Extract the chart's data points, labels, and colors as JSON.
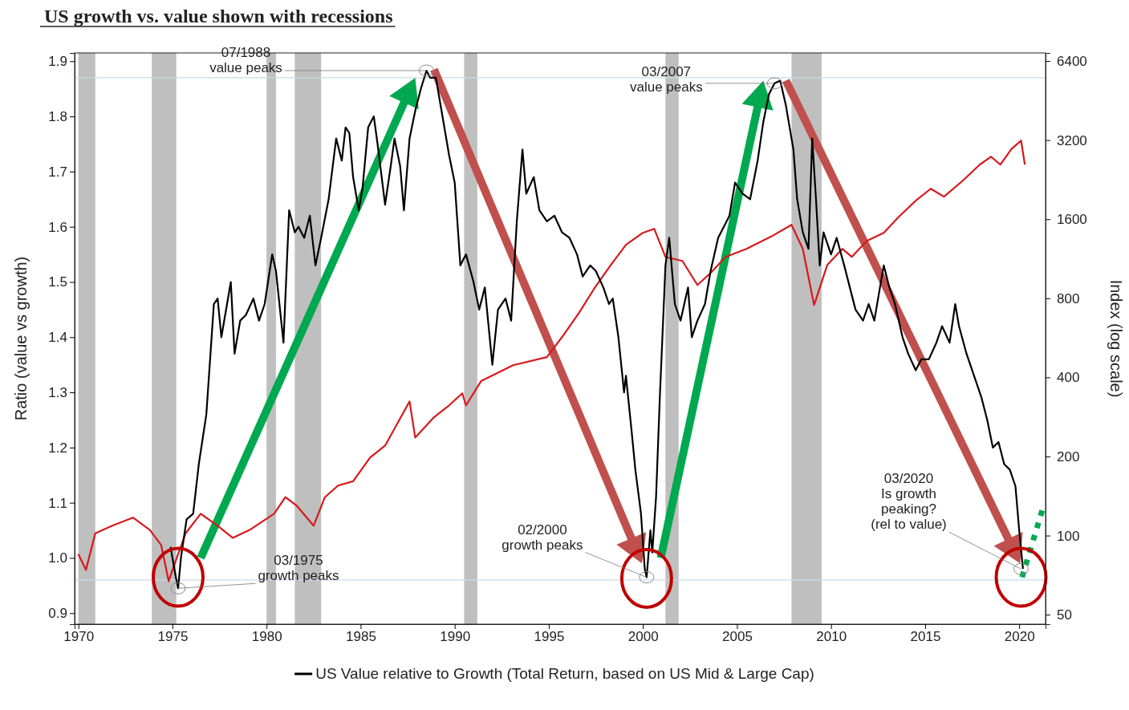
{
  "chart_data": {
    "type": "line",
    "title": "US growth vs. value shown with recessions",
    "ylabel": "Ratio (value vs growth)",
    "y2label": "Index (log scale)",
    "xlim": [
      1969.8,
      2021.4
    ],
    "xticks": [
      1970,
      1975,
      1980,
      1985,
      1990,
      1995,
      2000,
      2005,
      2010,
      2015,
      2020
    ],
    "ylim": [
      0.88,
      1.915
    ],
    "yticks": [
      0.9,
      {
        "value": 1,
        "label": "1.0"
      },
      1.1,
      1.2,
      1.3,
      1.4,
      1.5,
      1.6,
      1.7,
      1.8,
      1.9
    ],
    "y2lim": [
      46,
      6870
    ],
    "y2ticks": [
      50,
      100,
      200,
      400,
      800,
      1600,
      3200,
      6400
    ],
    "log": "y2",
    "grid": false,
    "legend": "bottom",
    "bands": [
      {
        "axis": "x",
        "from": 1970.0,
        "to": 1970.9,
        "color": "#bfbfbf"
      },
      {
        "axis": "x",
        "from": 1973.9,
        "to": 1975.2,
        "color": "#bfbfbf"
      },
      {
        "axis": "x",
        "from": 1980.0,
        "to": 1980.5,
        "color": "#bfbfbf"
      },
      {
        "axis": "x",
        "from": 1981.5,
        "to": 1982.9,
        "color": "#bfbfbf"
      },
      {
        "axis": "x",
        "from": 1990.5,
        "to": 1991.2,
        "color": "#bfbfbf"
      },
      {
        "axis": "x",
        "from": 2001.2,
        "to": 2001.9,
        "color": "#bfbfbf"
      },
      {
        "axis": "x",
        "from": 2007.9,
        "to": 2009.5,
        "color": "#bfbfbf"
      }
    ],
    "ref_lines": [
      {
        "axis": "y",
        "value": 1.87,
        "color": "#c8dde8"
      },
      {
        "axis": "y",
        "value": 0.96,
        "color": "#c8dde8"
      }
    ],
    "annotations": [
      {
        "text": "07/1988\nvalue peaks",
        "x": 1988.5,
        "y": 1.883
      },
      {
        "text": "03/2007\nvalue peaks",
        "x": 2007.0,
        "y": 1.86
      },
      {
        "text": "03/1975\ngrowth peaks",
        "x": 1975.3,
        "y": 0.945
      },
      {
        "text": "02/2000\ngrowth peaks",
        "x": 2000.2,
        "y": 0.965
      },
      {
        "text": "03/2020\nIs growth\npeaking?\n(rel to value)",
        "x": 2020.1,
        "y": 0.98
      }
    ],
    "series": [
      {
        "color": "#00a94f",
        "line_style": "dotted",
        "x": [
          2020.15,
          2021.3
        ],
        "values": [
          0.965,
          1.095
        ]
      },
      {
        "name": "US Value relative to Growth (Total Return, based on US Mid & Large Cap)",
        "color": "#000000",
        "x": [
          1974.9,
          1975.15,
          1975.3,
          1975.45,
          1975.75,
          1976.1,
          1976.4,
          1976.8,
          1977.0,
          1977.2,
          1977.4,
          1977.6,
          1977.9,
          1978.1,
          1978.3,
          1978.6,
          1978.9,
          1979.3,
          1979.6,
          1979.9,
          1980.3,
          1980.5,
          1980.9,
          1981.2,
          1981.5,
          1981.7,
          1982.0,
          1982.3,
          1982.6,
          1982.9,
          1983.3,
          1983.7,
          1984.0,
          1984.2,
          1984.4,
          1984.6,
          1984.9,
          1985.1,
          1985.4,
          1985.7,
          1985.9,
          1986.3,
          1986.6,
          1986.8,
          1987.1,
          1987.3,
          1987.6,
          1987.9,
          1988.2,
          1988.5,
          1988.7,
          1989.0,
          1989.4,
          1989.7,
          1990.0,
          1990.3,
          1990.6,
          1991.0,
          1991.3,
          1991.6,
          1992.0,
          1992.3,
          1992.7,
          1993.0,
          1993.3,
          1993.6,
          1993.8,
          1994.2,
          1994.5,
          1994.9,
          1995.3,
          1995.7,
          1996.1,
          1996.5,
          1996.8,
          1997.2,
          1997.5,
          1997.9,
          1998.2,
          1998.4,
          1998.7,
          1999.0,
          1999.1,
          1999.4,
          1999.6,
          1999.9,
          2000.1,
          2000.2,
          2000.4,
          2000.5,
          2000.7,
          2000.9,
          2001.2,
          2001.4,
          2001.7,
          2002.0,
          2002.4,
          2002.6,
          2002.9,
          2003.3,
          2003.6,
          2004.0,
          2004.6,
          2004.9,
          2005.3,
          2005.7,
          2006.1,
          2006.4,
          2006.7,
          2007.0,
          2007.3,
          2007.6,
          2008.0,
          2008.2,
          2008.5,
          2008.8,
          2009.0,
          2009.2,
          2009.4,
          2009.6,
          2010.0,
          2010.3,
          2010.7,
          2011.0,
          2011.3,
          2011.7,
          2012.0,
          2012.3,
          2012.8,
          2013.1,
          2013.4,
          2013.8,
          2014.1,
          2014.5,
          2014.8,
          2015.2,
          2015.6,
          2015.9,
          2016.3,
          2016.6,
          2016.8,
          2017.2,
          2017.6,
          2018.0,
          2018.3,
          2018.6,
          2018.9,
          2019.2,
          2019.5,
          2019.8,
          2020.0,
          2020.2
        ],
        "values": [
          1.02,
          0.97,
          0.945,
          1.0,
          1.07,
          1.08,
          1.17,
          1.26,
          1.36,
          1.46,
          1.47,
          1.4,
          1.46,
          1.5,
          1.37,
          1.43,
          1.44,
          1.47,
          1.43,
          1.46,
          1.55,
          1.52,
          1.39,
          1.63,
          1.59,
          1.6,
          1.58,
          1.62,
          1.53,
          1.58,
          1.65,
          1.76,
          1.72,
          1.78,
          1.77,
          1.69,
          1.63,
          1.67,
          1.78,
          1.8,
          1.75,
          1.64,
          1.71,
          1.76,
          1.71,
          1.63,
          1.76,
          1.81,
          1.85,
          1.883,
          1.87,
          1.87,
          1.79,
          1.73,
          1.68,
          1.53,
          1.55,
          1.5,
          1.45,
          1.49,
          1.35,
          1.45,
          1.47,
          1.43,
          1.61,
          1.74,
          1.66,
          1.69,
          1.63,
          1.61,
          1.62,
          1.59,
          1.58,
          1.55,
          1.51,
          1.53,
          1.52,
          1.49,
          1.46,
          1.47,
          1.4,
          1.3,
          1.33,
          1.23,
          1.16,
          1.08,
          0.98,
          0.965,
          1.05,
          1.01,
          1.11,
          1.29,
          1.53,
          1.58,
          1.46,
          1.43,
          1.49,
          1.4,
          1.43,
          1.46,
          1.52,
          1.58,
          1.62,
          1.68,
          1.66,
          1.65,
          1.72,
          1.79,
          1.84,
          1.86,
          1.865,
          1.82,
          1.74,
          1.65,
          1.59,
          1.56,
          1.76,
          1.65,
          1.53,
          1.59,
          1.55,
          1.58,
          1.53,
          1.49,
          1.45,
          1.43,
          1.46,
          1.43,
          1.53,
          1.49,
          1.46,
          1.4,
          1.37,
          1.34,
          1.36,
          1.36,
          1.39,
          1.42,
          1.39,
          1.46,
          1.42,
          1.37,
          1.33,
          1.29,
          1.25,
          1.2,
          1.21,
          1.17,
          1.16,
          1.13,
          1.05,
          0.98
        ]
      },
      {
        "color": "#d7191c",
        "axis": "y2",
        "x": [
          1970.0,
          1970.4,
          1970.9,
          1971.8,
          1972.9,
          1973.8,
          1974.4,
          1974.8,
          1975.0,
          1975.7,
          1976.5,
          1977.4,
          1978.2,
          1979.1,
          1980.4,
          1981.0,
          1981.6,
          1982.5,
          1983.1,
          1983.8,
          1984.6,
          1985.5,
          1986.3,
          1987.6,
          1987.9,
          1988.9,
          1989.7,
          1990.4,
          1990.6,
          1991.4,
          1993.1,
          1994.9,
          1995.7,
          1996.6,
          1997.4,
          1998.3,
          1999.1,
          2000.0,
          2000.6,
          2001.2,
          2002.1,
          2002.9,
          2003.6,
          2004.4,
          2005.5,
          2006.8,
          2007.9,
          2008.5,
          2009.1,
          2009.8,
          2010.6,
          2011.1,
          2011.9,
          2012.8,
          2013.6,
          2014.5,
          2015.3,
          2016.0,
          2017.0,
          2017.9,
          2018.5,
          2019.0,
          2019.6,
          2020.1,
          2020.3
        ],
        "values": [
          85,
          74,
          102,
          109,
          117,
          105,
          92,
          67,
          74,
          102,
          121,
          109,
          98,
          105,
          121,
          140,
          130,
          109,
          140,
          155,
          161,
          198,
          220,
          324,
          236,
          282,
          313,
          348,
          313,
          387,
          445,
          478,
          569,
          703,
          868,
          1072,
          1278,
          1420,
          1471,
          1150,
          1110,
          899,
          999,
          1150,
          1234,
          1372,
          1523,
          1234,
          754,
          1072,
          1234,
          1150,
          1324,
          1420,
          1634,
          1881,
          2090,
          1949,
          2242,
          2581,
          2768,
          2581,
          2969,
          3186,
          2581
        ]
      }
    ]
  }
}
